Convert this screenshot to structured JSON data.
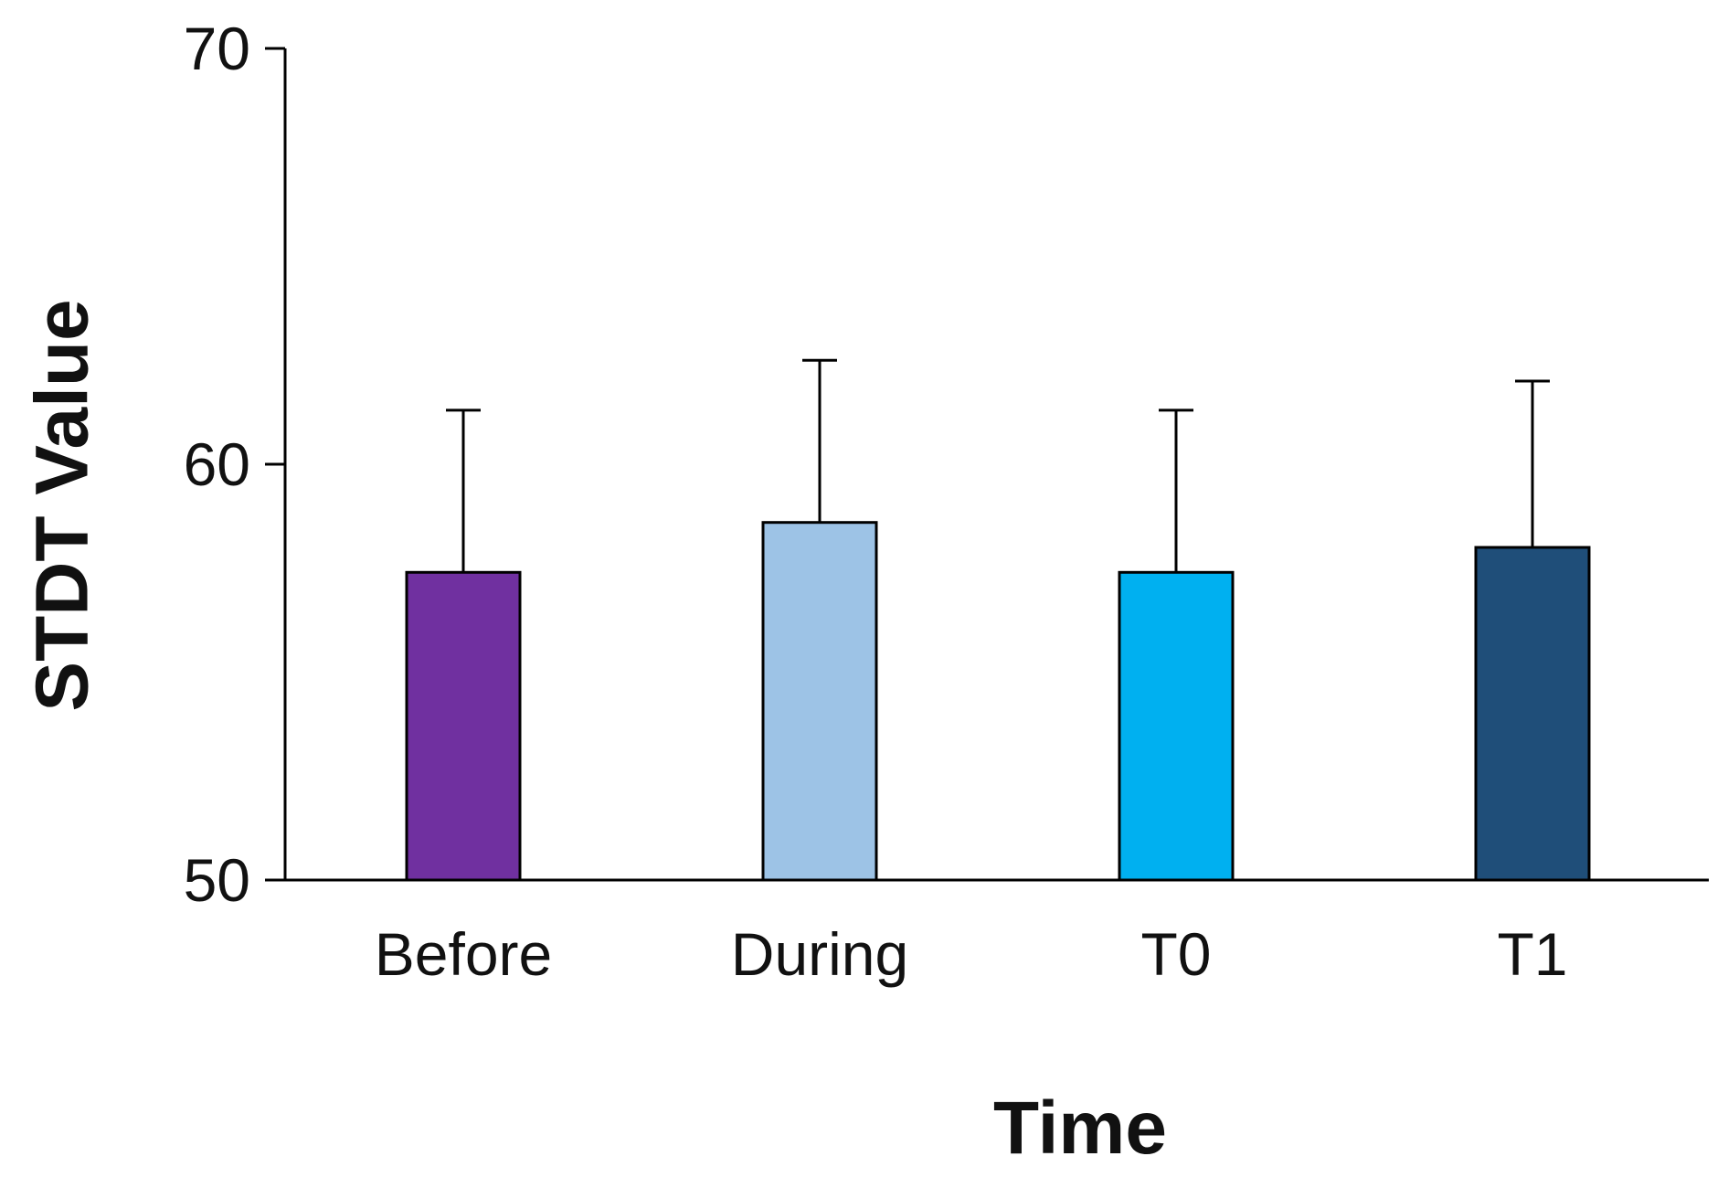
{
  "chart_data": {
    "type": "bar",
    "title": "",
    "xlabel": "Time",
    "ylabel": "STDT Value",
    "categories": [
      "Before",
      "During",
      "T0",
      "T1"
    ],
    "values": [
      57.4,
      58.6,
      57.4,
      58.0
    ],
    "error_upper": [
      61.3,
      62.5,
      61.3,
      62.0
    ],
    "colors": [
      "#7030a0",
      "#9dc3e6",
      "#00b0f0",
      "#1f4e79"
    ],
    "ylim": [
      50,
      70
    ],
    "yticks": [
      50,
      60,
      70
    ],
    "ytick_labels": [
      "50",
      "60",
      "70"
    ],
    "grid": false,
    "legend": "none"
  }
}
